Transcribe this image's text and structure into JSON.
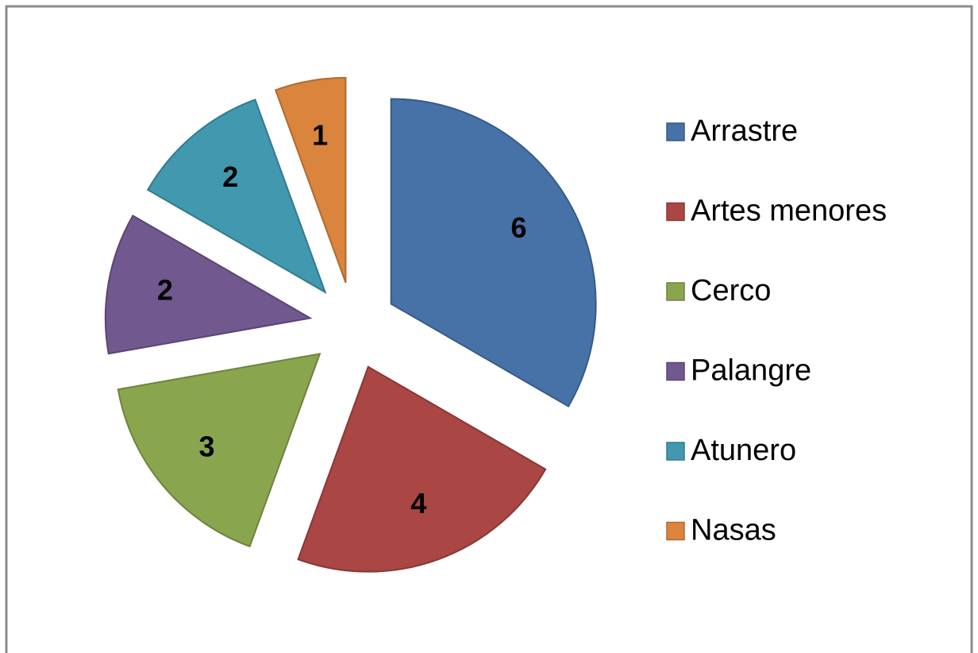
{
  "chart_data": {
    "type": "pie",
    "categories": [
      "Arrastre",
      "Artes menores",
      "Cerco",
      "Palangre",
      "Atunero",
      "Nasas"
    ],
    "values": [
      6,
      4,
      3,
      2,
      2,
      1
    ],
    "colors": [
      "#4672a8",
      "#aa4643",
      "#89a54e",
      "#71588f",
      "#4198af",
      "#db843d"
    ],
    "legend": "right"
  }
}
